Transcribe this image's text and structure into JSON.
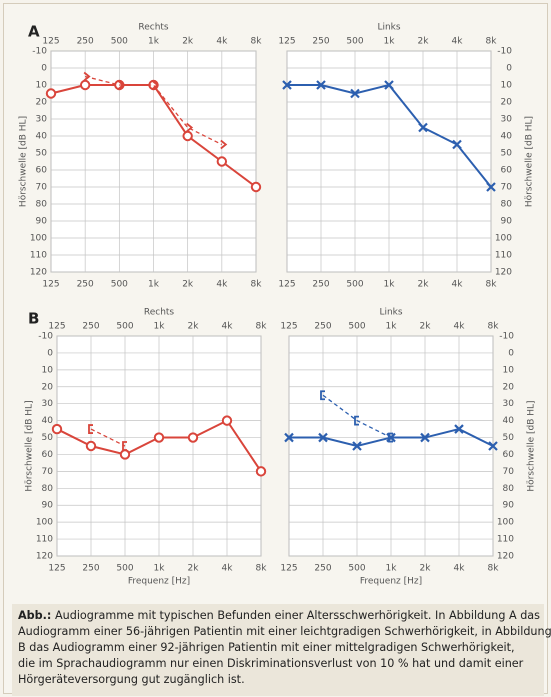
{
  "panel_labels": [
    "A",
    "B"
  ],
  "chart_data": [
    {
      "type": "line",
      "title": "Rechts",
      "ylabel": "Hörschwelle [dB HL]",
      "yaxis_side": "left",
      "categories": [
        "125",
        "250",
        "500",
        "1k",
        "2k",
        "4k",
        "8k"
      ],
      "ylim": [
        -10,
        120
      ],
      "y_inverted": true,
      "yticks": [
        -10,
        0,
        10,
        20,
        30,
        40,
        50,
        60,
        70,
        80,
        90,
        100,
        110,
        120
      ],
      "grid": true,
      "series": [
        {
          "color": "#d9453b",
          "marker": "circle",
          "linestyle": "solid",
          "values": [
            15,
            10,
            10,
            10,
            40,
            55,
            70
          ]
        },
        {
          "color": "#d9453b",
          "marker": "arrow",
          "linestyle": "dashed",
          "values": [
            null,
            5,
            10,
            10,
            35,
            45,
            null
          ]
        }
      ]
    },
    {
      "type": "line",
      "title": "Links",
      "ylabel": "Hörschwelle [dB HL]",
      "yaxis_side": "right",
      "categories": [
        "125",
        "250",
        "500",
        "1k",
        "2k",
        "4k",
        "8k"
      ],
      "ylim": [
        -10,
        120
      ],
      "y_inverted": true,
      "yticks": [
        -10,
        0,
        10,
        20,
        30,
        40,
        50,
        60,
        70,
        80,
        90,
        100,
        110,
        120
      ],
      "grid": true,
      "series": [
        {
          "color": "#2c5faf",
          "marker": "x",
          "linestyle": "solid",
          "values": [
            10,
            10,
            15,
            10,
            35,
            45,
            70
          ]
        }
      ]
    },
    {
      "type": "line",
      "title": "Rechts",
      "ylabel": "Hörschwelle [dB HL]",
      "xlabel": "Frequenz [Hz]",
      "yaxis_side": "left",
      "categories": [
        "125",
        "250",
        "500",
        "1k",
        "2k",
        "4k",
        "8k"
      ],
      "ylim": [
        -10,
        120
      ],
      "y_inverted": true,
      "yticks": [
        -10,
        0,
        10,
        20,
        30,
        40,
        50,
        60,
        70,
        80,
        90,
        100,
        110,
        120
      ],
      "grid": true,
      "series": [
        {
          "color": "#d9453b",
          "marker": "circle",
          "linestyle": "solid",
          "values": [
            45,
            55,
            60,
            50,
            50,
            40,
            70
          ]
        },
        {
          "color": "#d9453b",
          "marker": "bracket",
          "linestyle": "dashed",
          "values": [
            null,
            45,
            55,
            null,
            null,
            null,
            null
          ]
        }
      ]
    },
    {
      "type": "line",
      "title": "Links",
      "ylabel": "Hörschwelle [dB HL]",
      "xlabel": "Frequenz [Hz]",
      "yaxis_side": "right",
      "categories": [
        "125",
        "250",
        "500",
        "1k",
        "2k",
        "4k",
        "8k"
      ],
      "ylim": [
        -10,
        120
      ],
      "y_inverted": true,
      "yticks": [
        -10,
        0,
        10,
        20,
        30,
        40,
        50,
        60,
        70,
        80,
        90,
        100,
        110,
        120
      ],
      "grid": true,
      "series": [
        {
          "color": "#2c5faf",
          "marker": "x",
          "linestyle": "solid",
          "values": [
            50,
            50,
            55,
            50,
            50,
            45,
            55
          ]
        },
        {
          "color": "#2c5faf",
          "marker": "bracket",
          "linestyle": "dashed",
          "values": [
            null,
            25,
            40,
            50,
            null,
            null,
            null
          ]
        }
      ]
    }
  ],
  "caption": {
    "label": "Abb.:",
    "lines": [
      "Audiogramme mit typischen Befunden einer Altersschwerhörigkeit. In Abbildung A das",
      "Audiogramm einer 56-jährigen Patientin mit einer leichtgradigen Schwerhörigkeit, in Abbildung",
      "B das Audiogramm einer 92-jährigen Patientin mit einer mittelgradigen Schwerhörigkeit,",
      "die im Sprachaudiogramm nur einen Diskriminationsverlust von 10 % hat und damit einer",
      "Hörgeräteversorgung gut zugänglich ist."
    ]
  }
}
